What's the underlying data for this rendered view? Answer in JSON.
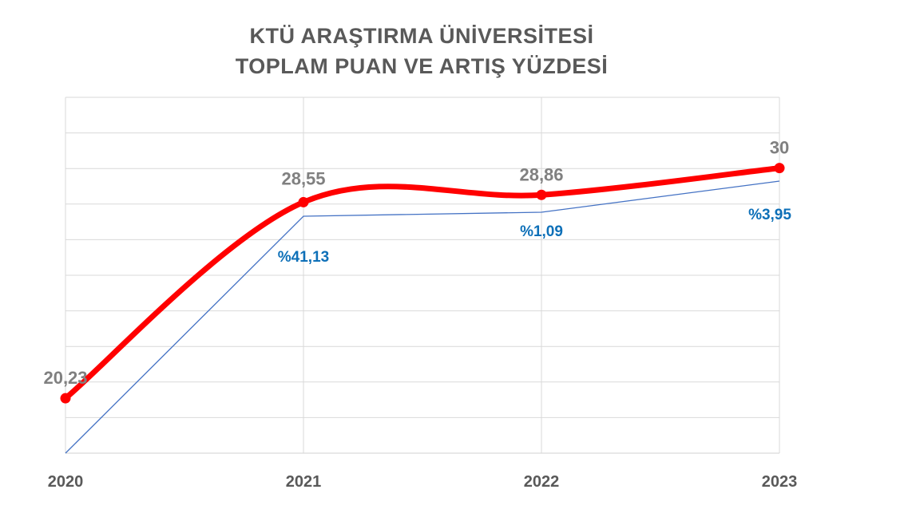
{
  "chart_data": {
    "type": "line",
    "title": [
      "KTÜ ARAŞTIRMA ÜNİVERSİTESİ",
      "TOPLAM PUAN VE ARTIŞ YÜZDESİ"
    ],
    "categories": [
      "2020",
      "2021",
      "2022",
      "2023"
    ],
    "series": [
      {
        "values": [
          20.23,
          28.55,
          28.86,
          30
        ],
        "labels": [
          "20,23",
          "28,55",
          "28,86",
          "30"
        ],
        "color": "#ff0000",
        "smooth": true
      },
      {
        "values": [
          null,
          41.13,
          1.09,
          3.95
        ],
        "labels": [
          "",
          "%41,13",
          "%1,09",
          "%3,95"
        ],
        "color": "#4472c4",
        "label_color": "#0e70b8"
      }
    ],
    "grid": true,
    "value_axis_labels": false,
    "tick_color": "#595959",
    "value_label_color": "#808080"
  }
}
